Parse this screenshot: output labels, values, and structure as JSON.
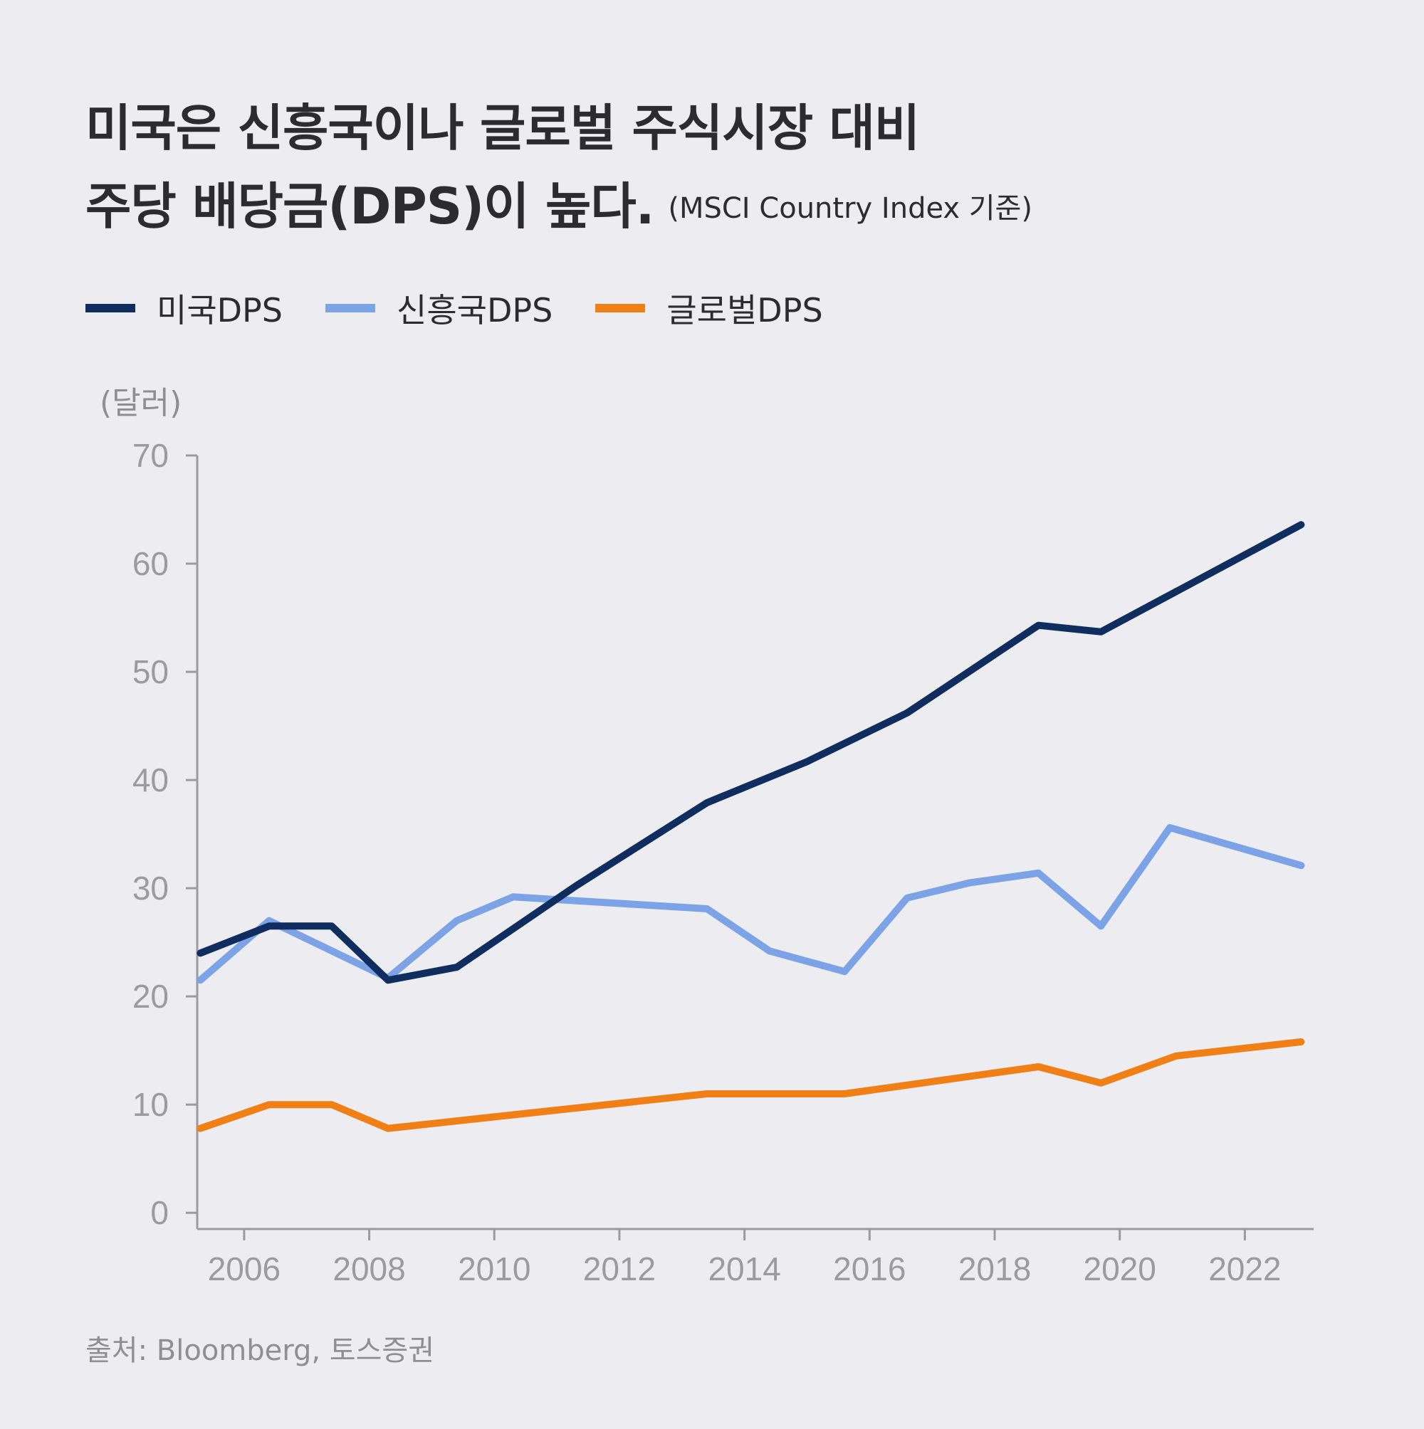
{
  "title": {
    "line1": "미국은 신흥국이나 글로벌 주식시장 대비",
    "line2": "주당 배당금(DPS)이 높다.",
    "note": "(MSCI Country Index 기준)"
  },
  "unit_label": "(달러)",
  "source": "출처: Bloomberg, 토스증권",
  "colors": {
    "us": "#0f2d5e",
    "em": "#7ba3e6",
    "global": "#f07f15",
    "axis": "#9a9a9f",
    "background": "#edecf1"
  },
  "chart_data": {
    "type": "line",
    "x_tick_labels": [
      "2006",
      "2008",
      "2010",
      "2012",
      "2014",
      "2016",
      "2018",
      "2020",
      "2022"
    ],
    "x_ticks": [
      2006,
      2008,
      2010,
      2012,
      2014,
      2016,
      2018,
      2020,
      2022
    ],
    "xlim": [
      2005.25,
      2023.1
    ],
    "y_tick_labels": [
      "0",
      "10",
      "20",
      "30",
      "40",
      "50",
      "60",
      "70"
    ],
    "y_ticks": [
      0,
      10,
      20,
      30,
      40,
      50,
      60,
      70
    ],
    "ylim": [
      -1.5,
      70
    ],
    "ylabel": "(달러)",
    "grid": false,
    "legend_position": "top-left",
    "series": [
      {
        "name": "미국DPS",
        "key": "us",
        "x": [
          2005.3,
          2006.4,
          2007.4,
          2008.3,
          2009.4,
          2011.3,
          2013.4,
          2015.0,
          2016.6,
          2018.7,
          2019.7,
          2022.9
        ],
        "y": [
          24.0,
          26.5,
          26.5,
          21.5,
          22.7,
          30.2,
          37.9,
          41.7,
          46.2,
          54.3,
          53.7,
          63.6
        ]
      },
      {
        "name": "신흥국DPS",
        "key": "em",
        "x": [
          2005.3,
          2006.4,
          2008.3,
          2009.4,
          2010.3,
          2013.4,
          2014.4,
          2015.6,
          2016.6,
          2017.6,
          2018.7,
          2019.7,
          2020.8,
          2022.9
        ],
        "y": [
          21.5,
          27.0,
          21.7,
          27.0,
          29.2,
          28.1,
          24.2,
          22.3,
          29.1,
          30.5,
          31.4,
          26.5,
          35.6,
          32.1
        ]
      },
      {
        "name": "글로벌DPS",
        "key": "global",
        "x": [
          2005.3,
          2006.4,
          2007.4,
          2008.3,
          2013.4,
          2015.6,
          2018.7,
          2019.7,
          2020.9,
          2022.9
        ],
        "y": [
          7.8,
          10.0,
          10.0,
          7.8,
          11.0,
          11.0,
          13.5,
          12.0,
          14.5,
          15.8
        ]
      }
    ]
  }
}
